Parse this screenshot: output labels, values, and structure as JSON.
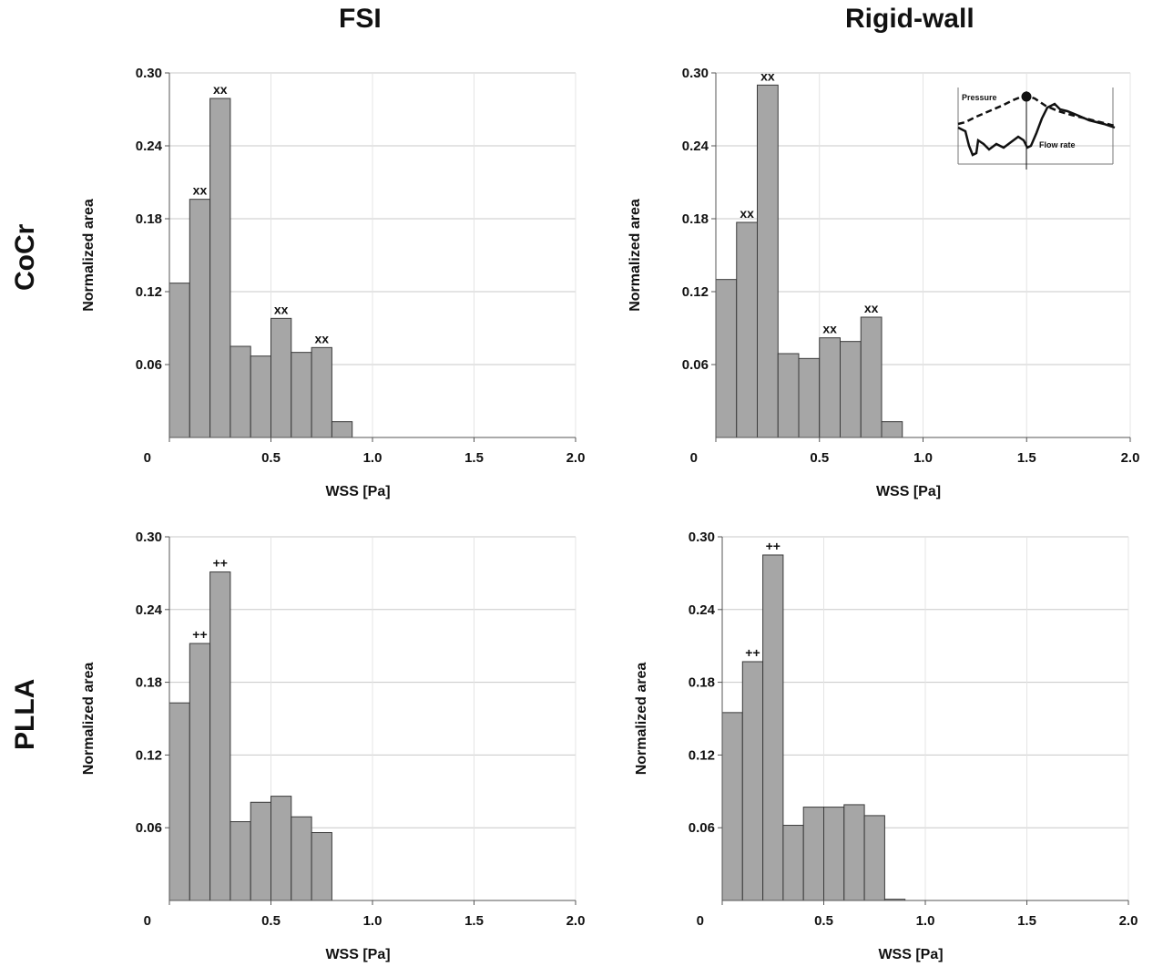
{
  "figure": {
    "column_titles": [
      "FSI",
      "Rigid-wall"
    ],
    "row_titles": [
      "CoCr",
      "PLLA"
    ]
  },
  "colors": {
    "bar_fill": "#a6a6a6",
    "bar_stroke": "#3a3a3a",
    "grid": "#c8c8c8",
    "text": "#111111"
  },
  "chart_data": [
    {
      "type": "bar",
      "row": "CoCr",
      "column": "FSI",
      "xlabel": "WSS [Pa]",
      "ylabel": "Normalized area",
      "bin_width": 0.1,
      "bin_starts": [
        0.0,
        0.1,
        0.2,
        0.3,
        0.4,
        0.5,
        0.6,
        0.7,
        0.8
      ],
      "values": [
        0.127,
        0.196,
        0.279,
        0.075,
        0.067,
        0.098,
        0.07,
        0.074,
        0.013
      ],
      "annotations": [
        {
          "bin": 1,
          "text": "xx"
        },
        {
          "bin": 2,
          "text": "xx"
        },
        {
          "bin": 5,
          "text": "xx"
        },
        {
          "bin": 7,
          "text": "xx"
        }
      ],
      "xlim": [
        0,
        2.0
      ],
      "ylim": [
        0,
        0.3
      ],
      "xticks": [
        "0",
        "0.5",
        "1.0",
        "1.5",
        "2.0"
      ],
      "yticks": [
        "0.06",
        "0.12",
        "0.18",
        "0.24",
        "0.30"
      ],
      "grid": true,
      "legend": false
    },
    {
      "type": "bar",
      "row": "CoCr",
      "column": "Rigid-wall",
      "xlabel": "WSS [Pa]",
      "ylabel": "Normalized area",
      "bin_width": 0.1,
      "bin_starts": [
        0.0,
        0.1,
        0.2,
        0.3,
        0.4,
        0.5,
        0.6,
        0.7,
        0.8
      ],
      "values": [
        0.13,
        0.177,
        0.29,
        0.069,
        0.065,
        0.082,
        0.079,
        0.099,
        0.013
      ],
      "annotations": [
        {
          "bin": 1,
          "text": "xx"
        },
        {
          "bin": 2,
          "text": "xx"
        },
        {
          "bin": 5,
          "text": "xx"
        },
        {
          "bin": 7,
          "text": "xx"
        }
      ],
      "xlim": [
        0,
        2.0
      ],
      "ylim": [
        0,
        0.3
      ],
      "xticks": [
        "0",
        "0.5",
        "1.0",
        "1.5",
        "2.0"
      ],
      "yticks": [
        "0.06",
        "0.12",
        "0.18",
        "0.24",
        "0.30"
      ],
      "grid": true,
      "legend": false,
      "inset": {
        "labels": [
          "Pressure",
          "Flow rate"
        ],
        "marker": "filled circle on pressure curve at vertical time line"
      }
    },
    {
      "type": "bar",
      "row": "PLLA",
      "column": "FSI",
      "xlabel": "WSS [Pa]",
      "ylabel": "Normalized area",
      "bin_width": 0.1,
      "bin_starts": [
        0.0,
        0.1,
        0.2,
        0.3,
        0.4,
        0.5,
        0.6,
        0.7
      ],
      "values": [
        0.163,
        0.212,
        0.271,
        0.065,
        0.081,
        0.086,
        0.069,
        0.056
      ],
      "annotations": [
        {
          "bin": 1,
          "text": "++"
        },
        {
          "bin": 2,
          "text": "++"
        }
      ],
      "xlim": [
        0,
        2.0
      ],
      "ylim": [
        0,
        0.3
      ],
      "xticks": [
        "0",
        "0.5",
        "1.0",
        "1.5",
        "2.0"
      ],
      "yticks": [
        "0.06",
        "0.12",
        "0.18",
        "0.24",
        "0.30"
      ],
      "grid": true,
      "legend": false
    },
    {
      "type": "bar",
      "row": "PLLA",
      "column": "Rigid-wall",
      "xlabel": "WSS [Pa]",
      "ylabel": "Normalized area",
      "bin_width": 0.1,
      "bin_starts": [
        0.0,
        0.1,
        0.2,
        0.3,
        0.4,
        0.5,
        0.6,
        0.7,
        0.8
      ],
      "values": [
        0.155,
        0.197,
        0.285,
        0.062,
        0.077,
        0.077,
        0.079,
        0.07,
        0.001
      ],
      "annotations": [
        {
          "bin": 1,
          "text": "++"
        },
        {
          "bin": 2,
          "text": "++"
        }
      ],
      "xlim": [
        0,
        2.0
      ],
      "ylim": [
        0,
        0.3
      ],
      "xticks": [
        "0",
        "0.5",
        "1.0",
        "1.5",
        "2.0"
      ],
      "yticks": [
        "0.06",
        "0.12",
        "0.18",
        "0.24",
        "0.30"
      ],
      "grid": true,
      "legend": false
    }
  ]
}
